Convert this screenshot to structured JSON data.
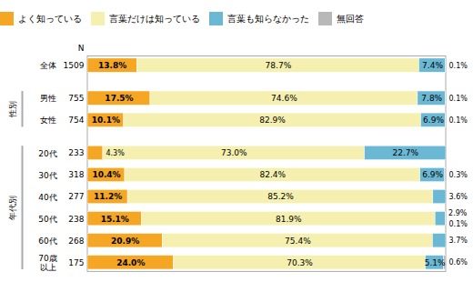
{
  "chart_data": {
    "type": "bar",
    "orientation": "horizontal",
    "stacked": true,
    "categories": [
      "全体",
      "男性",
      "女性",
      "20代",
      "30代",
      "40代",
      "50代",
      "60代",
      "70歳\n以上"
    ],
    "n_label": "N",
    "n": [
      "1509",
      "755",
      "754",
      "233",
      "318",
      "277",
      "238",
      "268",
      "175"
    ],
    "groups": [
      {
        "name": "性別",
        "categories": [
          "男性",
          "女性"
        ]
      },
      {
        "name": "年代別",
        "categories": [
          "20代",
          "30代",
          "40代",
          "50代",
          "60代",
          "70歳\n以上"
        ]
      }
    ],
    "series": [
      {
        "name": "よく知っている",
        "color": "#F5A623",
        "values": [
          13.8,
          17.5,
          10.1,
          4.3,
          10.4,
          11.2,
          15.1,
          20.9,
          24.0
        ],
        "value_labels": [
          "13.8%",
          "17.5%",
          "10.1%",
          "4.3%",
          "10.4%",
          "11.2%",
          "15.1%",
          "20.9%",
          "24.0%"
        ]
      },
      {
        "name": "言葉だけは知っている",
        "color": "#F5F0B0",
        "values": [
          78.7,
          74.6,
          82.9,
          73.0,
          82.4,
          85.2,
          81.9,
          75.4,
          70.3
        ],
        "value_labels": [
          "78.7%",
          "74.6%",
          "82.9%",
          "73.0%",
          "82.4%",
          "85.2%",
          "81.9%",
          "75.4%",
          "70.3%"
        ]
      },
      {
        "name": "言葉も知らなかった",
        "color": "#6BB8D4",
        "values": [
          7.4,
          7.8,
          6.9,
          22.7,
          6.9,
          3.6,
          2.9,
          3.7,
          5.1
        ],
        "value_labels": [
          "7.4%",
          "7.8%",
          "6.9%",
          "22.7%",
          "6.9%",
          "3.6%",
          "2.9%",
          "3.7%",
          "5.1%"
        ]
      },
      {
        "name": "無回答",
        "color": "#B8B8B8",
        "values": [
          0.1,
          0.1,
          0.1,
          0.0,
          0.3,
          0.0,
          0.1,
          0.0,
          0.6
        ],
        "value_labels": [
          "0.1%",
          "0.1%",
          "0.1%",
          null,
          "0.3%",
          null,
          "0.1%",
          null,
          "0.6%"
        ]
      }
    ],
    "xlim": [
      0,
      100
    ],
    "tick_labels": false,
    "grid": false,
    "legend": "top",
    "data_labels": true
  }
}
